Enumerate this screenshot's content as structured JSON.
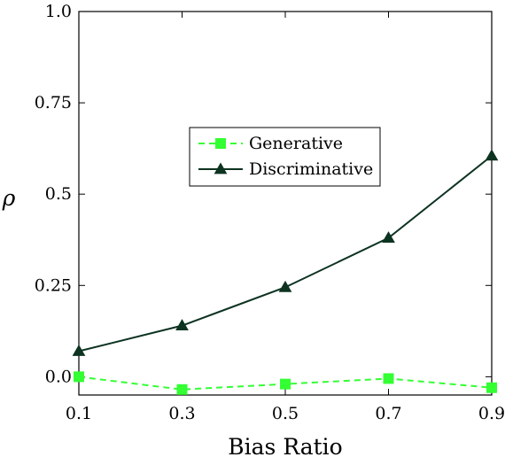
{
  "chart_data": {
    "type": "line",
    "title": "",
    "xlabel": "Bias Ratio",
    "ylabel": "ρ",
    "x": [
      0.1,
      0.3,
      0.5,
      0.7,
      0.9
    ],
    "x_ticks": [
      "0.1",
      "0.3",
      "0.5",
      "0.7",
      "0.9"
    ],
    "y_ticks": [
      "0.0",
      "0.25",
      "0.5",
      "0.75",
      "1.0"
    ],
    "y_tick_values": [
      0,
      0.25,
      0.5,
      0.75,
      1.0
    ],
    "xlim": [
      0.1,
      0.9
    ],
    "ylim": [
      -0.05,
      1.0
    ],
    "grid": false,
    "legend_position": "center",
    "series": [
      {
        "name": "Generative",
        "values": [
          0.0,
          -0.035,
          -0.02,
          -0.005,
          -0.03
        ],
        "color": "#33ff33",
        "line_style": "dashed",
        "marker": "square"
      },
      {
        "name": "Discriminative",
        "values": [
          0.07,
          0.14,
          0.245,
          0.38,
          0.605
        ],
        "color": "#0d3321",
        "line_style": "solid",
        "marker": "triangle"
      }
    ]
  }
}
